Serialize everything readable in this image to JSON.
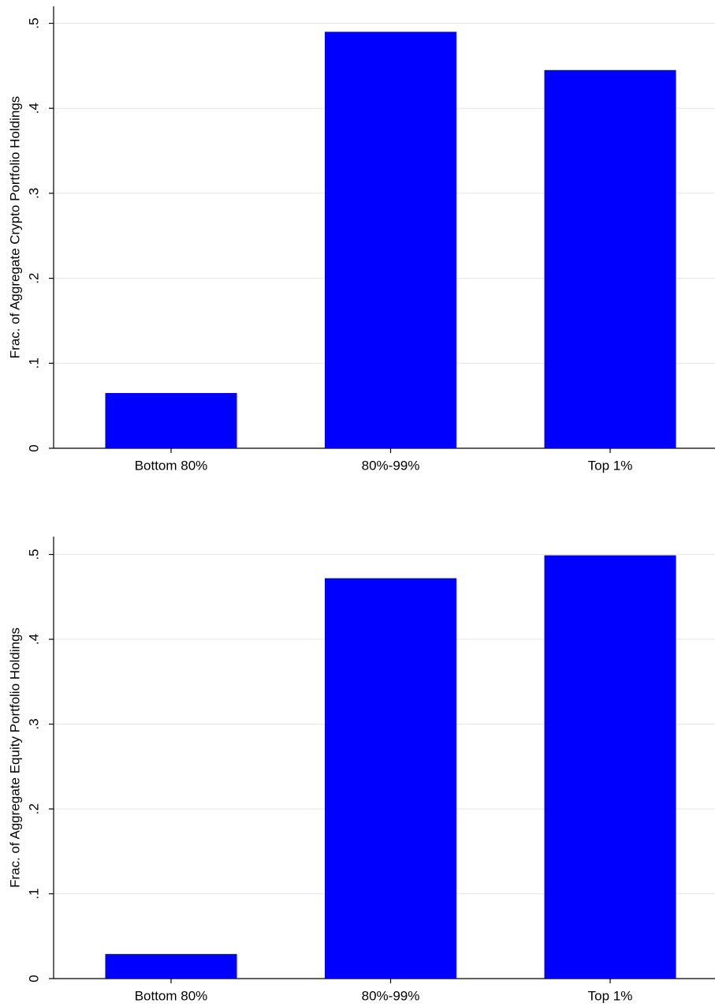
{
  "chart_data": [
    {
      "type": "bar",
      "y_label": "Frac. of Aggregate Crypto Portfolio Holdings",
      "categories": [
        "Bottom 80%",
        "80%-99%",
        "Top 1%"
      ],
      "values": [
        0.065,
        0.49,
        0.445
      ],
      "color": "#0000ff",
      "ylim": [
        0,
        0.52
      ],
      "yticks": [
        0,
        {
          "value": 0.1,
          "label": ".1"
        },
        {
          "value": 0.2,
          "label": ".2"
        },
        {
          "value": 0.3,
          "label": ".3"
        },
        {
          "value": 0.4,
          "label": ".4"
        },
        {
          "value": 0.5,
          "label": ".5"
        }
      ],
      "grid": true
    },
    {
      "type": "bar",
      "y_label": "Frac. of Aggregate Equity Portfolio Holdings",
      "categories": [
        "Bottom 80%",
        "80%-99%",
        "Top 1%"
      ],
      "values": [
        0.029,
        0.472,
        0.499
      ],
      "color": "#0000ff",
      "ylim": [
        0,
        0.521
      ],
      "yticks": [
        0,
        {
          "value": 0.1,
          "label": ".1"
        },
        {
          "value": 0.2,
          "label": ".2"
        },
        {
          "value": 0.3,
          "label": ".3"
        },
        {
          "value": 0.4,
          "label": ".4"
        },
        {
          "value": 0.5,
          "label": ".5"
        }
      ],
      "grid": true
    }
  ]
}
